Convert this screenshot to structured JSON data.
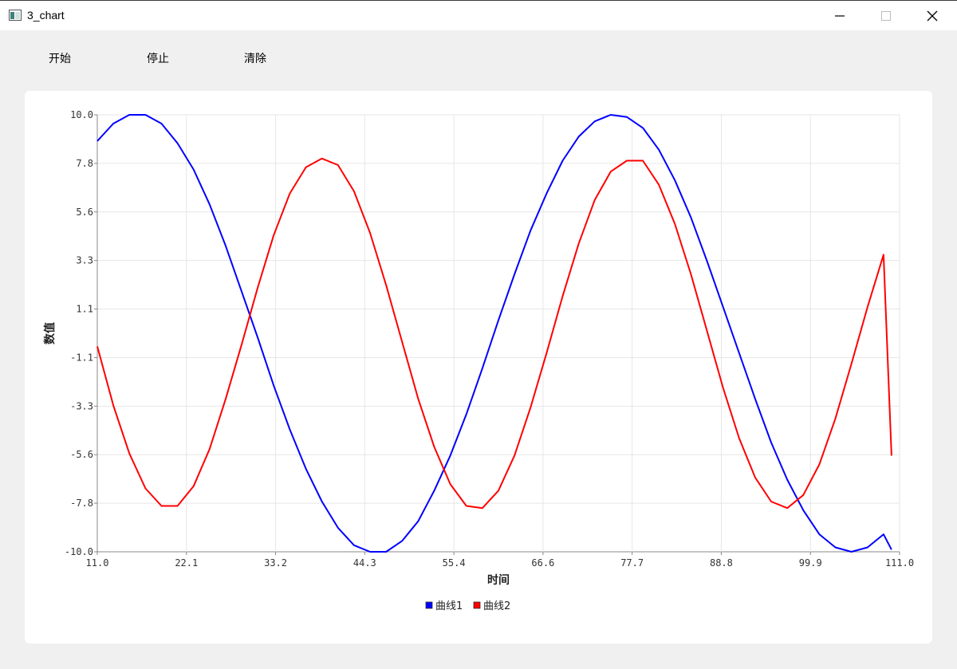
{
  "window": {
    "title": "3_chart",
    "controls": [
      "minimize-icon",
      "maximize-icon",
      "close-icon"
    ]
  },
  "toolbar": {
    "start_label": "开始",
    "stop_label": "停止",
    "clear_label": "清除"
  },
  "chart_data": {
    "type": "line",
    "title": "",
    "xlabel": "时间",
    "ylabel": "数值",
    "xlim": [
      11.0,
      111.0
    ],
    "ylim": [
      -10.0,
      10.0
    ],
    "x_ticks": [
      "11.0",
      "22.1",
      "33.2",
      "44.3",
      "55.4",
      "66.6",
      "77.7",
      "88.8",
      "99.9",
      "111.0"
    ],
    "y_ticks": [
      "10.0",
      "7.8",
      "5.6",
      "3.3",
      "1.1",
      "-1.1",
      "-3.3",
      "-5.6",
      "-7.8",
      "-10.0"
    ],
    "grid": true,
    "legend_position": "bottom-center",
    "series": [
      {
        "name": "曲线1",
        "color": "#0000ff",
        "x": [
          11,
          13,
          15,
          17,
          19,
          21,
          23,
          25,
          27,
          29,
          31,
          33,
          35,
          37,
          39,
          41,
          43,
          45,
          47,
          49,
          51,
          53,
          55,
          57,
          59,
          61,
          63,
          65,
          67,
          69,
          71,
          73,
          75,
          77,
          79,
          81,
          83,
          85,
          87,
          89,
          91,
          93,
          95,
          97,
          99,
          101,
          103,
          105,
          107,
          109,
          110
        ],
        "values": [
          8.8,
          9.6,
          10.0,
          10.0,
          9.6,
          8.7,
          7.5,
          5.9,
          4.0,
          1.9,
          -0.2,
          -2.4,
          -4.4,
          -6.2,
          -7.7,
          -8.9,
          -9.7,
          -10.0,
          -10.0,
          -9.5,
          -8.6,
          -7.2,
          -5.6,
          -3.7,
          -1.6,
          0.6,
          2.7,
          4.7,
          6.4,
          7.9,
          9.0,
          9.7,
          10.0,
          9.9,
          9.4,
          8.4,
          7.0,
          5.3,
          3.3,
          1.2,
          -0.9,
          -3.0,
          -5.0,
          -6.7,
          -8.1,
          -9.2,
          -9.8,
          -10.0,
          -9.8,
          -9.2,
          -9.9
        ]
      },
      {
        "name": "曲线2",
        "color": "#ff0000",
        "x": [
          11,
          13,
          15,
          17,
          19,
          21,
          23,
          25,
          27,
          29,
          31,
          33,
          35,
          37,
          39,
          41,
          43,
          45,
          47,
          49,
          51,
          53,
          55,
          57,
          59,
          61,
          63,
          65,
          67,
          69,
          71,
          73,
          75,
          77,
          79,
          81,
          83,
          85,
          87,
          89,
          91,
          93,
          95,
          97,
          99,
          101,
          103,
          105,
          107,
          109,
          110
        ],
        "values": [
          -0.6,
          -3.3,
          -5.5,
          -7.1,
          -7.9,
          -7.9,
          -7.0,
          -5.3,
          -3.0,
          -0.5,
          2.1,
          4.5,
          6.4,
          7.6,
          8.0,
          7.7,
          6.5,
          4.6,
          2.2,
          -0.4,
          -3.0,
          -5.2,
          -6.9,
          -7.9,
          -8.0,
          -7.2,
          -5.6,
          -3.4,
          -0.9,
          1.7,
          4.1,
          6.1,
          7.4,
          7.9,
          7.9,
          6.8,
          5.0,
          2.7,
          0.1,
          -2.5,
          -4.8,
          -6.6,
          -7.7,
          -8.0,
          -7.4,
          -6.0,
          -3.9,
          -1.4,
          1.2,
          3.6,
          -5.6
        ]
      }
    ]
  }
}
